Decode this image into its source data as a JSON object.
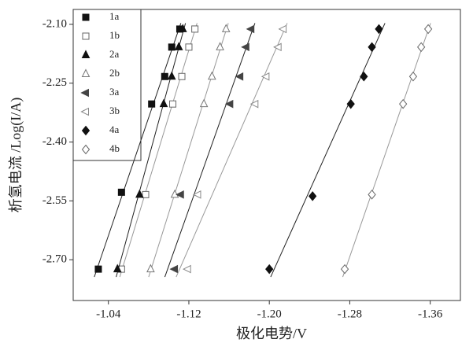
{
  "chart_data": {
    "type": "scatter",
    "x_label": "极化电势/V",
    "y_label": "析氢电流  /Log(I/A)",
    "xlim": [
      -1.005,
      -1.39
    ],
    "ylim": [
      -2.804,
      -2.062
    ],
    "xticks": [
      -1.04,
      -1.12,
      -1.2,
      -1.28,
      -1.36
    ],
    "xtick_labels": [
      "-1.04",
      "-1.12",
      "-1.20",
      "-1.28",
      "-1.36"
    ],
    "yticks": [
      {
        "value": -2.1,
        "label": "-2.10"
      },
      -2.25,
      {
        "value": -2.4,
        "label": "-2.40"
      },
      -2.55,
      {
        "value": -2.7,
        "label": "-2.70"
      }
    ],
    "fit_lines": true,
    "legend": "upper left",
    "series": [
      {
        "name": "1a",
        "marker": "square",
        "filled": true,
        "color": "#111",
        "x": [
          -1.03,
          -1.053,
          -1.083,
          -1.096,
          -1.103,
          -1.111
        ],
        "y": [
          -2.724,
          -2.528,
          -2.303,
          -2.233,
          -2.158,
          -2.112
        ]
      },
      {
        "name": "1b",
        "marker": "square",
        "filled": false,
        "color": "#666",
        "x": [
          -1.053,
          -1.077,
          -1.104,
          -1.113,
          -1.12,
          -1.126
        ],
        "y": [
          -2.724,
          -2.534,
          -2.303,
          -2.233,
          -2.158,
          -2.112
        ]
      },
      {
        "name": "2a",
        "marker": "triangle-up",
        "filled": true,
        "color": "#111",
        "x": [
          -1.049,
          -1.071,
          -1.095,
          -1.103,
          -1.11,
          -1.114
        ],
        "y": [
          -2.724,
          -2.534,
          -2.303,
          -2.233,
          -2.158,
          -2.112
        ]
      },
      {
        "name": "2b",
        "marker": "triangle-up",
        "filled": false,
        "color": "#777",
        "x": [
          -1.082,
          -1.106,
          -1.135,
          -1.143,
          -1.151,
          -1.157
        ],
        "y": [
          -2.724,
          -2.534,
          -2.303,
          -2.233,
          -2.158,
          -2.112
        ]
      },
      {
        "name": "3a",
        "marker": "triangle-left",
        "filled": true,
        "color": "#444",
        "x": [
          -1.106,
          -1.112,
          -1.161,
          -1.171,
          -1.177,
          -1.182
        ],
        "y": [
          -2.724,
          -2.534,
          -2.303,
          -2.233,
          -2.158,
          -2.112
        ]
      },
      {
        "name": "3b",
        "marker": "triangle-left",
        "filled": false,
        "color": "#888",
        "x": [
          -1.119,
          -1.129,
          -1.186,
          -1.197,
          -1.209,
          -1.214
        ],
        "y": [
          -2.724,
          -2.534,
          -2.303,
          -2.233,
          -2.158,
          -2.112
        ]
      },
      {
        "name": "4a",
        "marker": "diamond",
        "filled": true,
        "color": "#111",
        "x": [
          -1.2,
          -1.243,
          -1.281,
          -1.294,
          -1.302,
          -1.309
        ],
        "y": [
          -2.724,
          -2.538,
          -2.303,
          -2.233,
          -2.158,
          -2.112
        ]
      },
      {
        "name": "4b",
        "marker": "diamond",
        "filled": false,
        "color": "#666",
        "x": [
          -1.275,
          -1.302,
          -1.333,
          -1.343,
          -1.351,
          -1.358
        ],
        "y": [
          -2.724,
          -2.534,
          -2.303,
          -2.233,
          -2.158,
          -2.112
        ]
      }
    ]
  }
}
